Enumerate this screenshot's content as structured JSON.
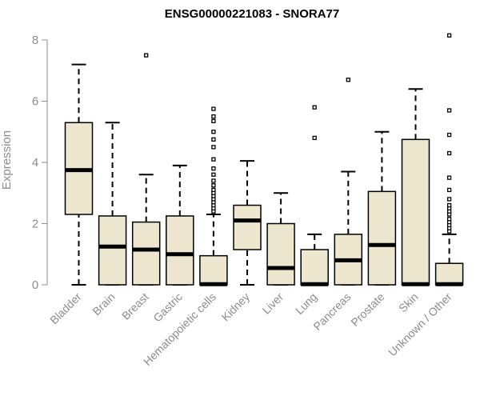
{
  "chart_data": {
    "type": "box",
    "title": "ENSG00000221083 - SNORA77",
    "ylabel": "Expression",
    "xlabel": "",
    "ylim": [
      0,
      8.2
    ],
    "yticks": [
      0,
      2,
      4,
      6,
      8
    ],
    "colors": {
      "box_fill": "#ede7cf",
      "stroke": "#000000",
      "axis_text": "#8c8c8c"
    },
    "categories": [
      "Bladder",
      "Brain",
      "Breast",
      "Gastric",
      "Hematopoietic cells",
      "Kidney",
      "Liver",
      "Lung",
      "Pancreas",
      "Prostate",
      "Skin",
      "Unknown / Other"
    ],
    "boxes": [
      {
        "min": 0,
        "q1": 2.3,
        "median": 3.75,
        "q3": 5.3,
        "max": 7.2,
        "outliers": []
      },
      {
        "min": 0,
        "q1": 0,
        "median": 1.25,
        "q3": 2.25,
        "max": 5.3,
        "outliers": []
      },
      {
        "min": 0,
        "q1": 0,
        "median": 1.15,
        "q3": 2.05,
        "max": 3.6,
        "outliers": [
          7.5
        ]
      },
      {
        "min": 0,
        "q1": 0,
        "median": 1.0,
        "q3": 2.25,
        "max": 3.9,
        "outliers": []
      },
      {
        "min": 0,
        "q1": 0,
        "median": 0.02,
        "q3": 0.95,
        "max": 2.3,
        "outliers": [
          2.4,
          2.5,
          2.6,
          2.7,
          2.8,
          2.9,
          3.0,
          3.1,
          3.25,
          3.4,
          3.6,
          3.8,
          4.1,
          4.5,
          4.75,
          5.0,
          5.35,
          5.5,
          5.75
        ]
      },
      {
        "min": 0,
        "q1": 1.15,
        "median": 2.1,
        "q3": 2.6,
        "max": 4.05,
        "outliers": []
      },
      {
        "min": 0,
        "q1": 0,
        "median": 0.55,
        "q3": 2.0,
        "max": 3.0,
        "outliers": []
      },
      {
        "min": 0,
        "q1": 0,
        "median": 0.02,
        "q3": 1.15,
        "max": 1.65,
        "outliers": [
          4.8,
          5.8
        ]
      },
      {
        "min": 0,
        "q1": 0,
        "median": 0.8,
        "q3": 1.65,
        "max": 3.7,
        "outliers": [
          6.7
        ]
      },
      {
        "min": 0,
        "q1": 0,
        "median": 1.3,
        "q3": 3.05,
        "max": 5.0,
        "outliers": []
      },
      {
        "min": 0,
        "q1": 0,
        "median": 0.02,
        "q3": 4.75,
        "max": 6.4,
        "outliers": []
      },
      {
        "min": 0,
        "q1": 0,
        "median": 0.02,
        "q3": 0.7,
        "max": 1.65,
        "outliers": [
          1.75,
          1.85,
          1.95,
          2.05,
          2.15,
          2.3,
          2.4,
          2.5,
          2.6,
          2.8,
          3.1,
          3.5,
          4.3,
          4.9,
          5.7,
          8.15
        ]
      }
    ]
  }
}
